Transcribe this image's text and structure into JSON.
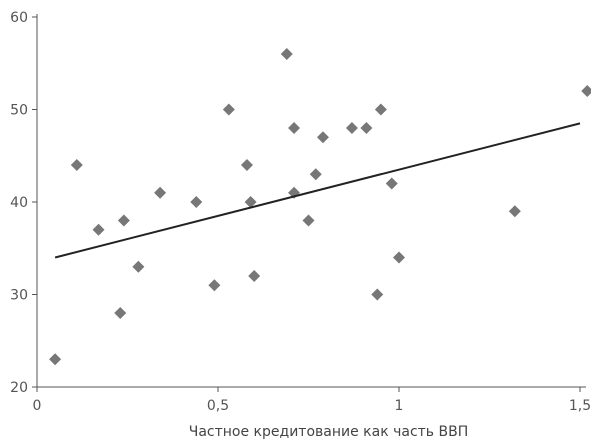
{
  "chart_data": {
    "type": "scatter",
    "title": "",
    "xlabel": "Частное кредитование как часть ВВП",
    "ylabel": "",
    "xlim": [
      0,
      1.5
    ],
    "ylim": [
      20,
      60
    ],
    "grid": false,
    "legend": "none",
    "x_ticks": [
      {
        "value": 0,
        "label": "0"
      },
      {
        "value": 0.5,
        "label": "0,5"
      },
      {
        "value": 1,
        "label": "1"
      },
      {
        "value": 1.5,
        "label": "1,5"
      }
    ],
    "y_ticks": [
      {
        "value": 20,
        "label": "20"
      },
      {
        "value": 30,
        "label": "30"
      },
      {
        "value": 40,
        "label": "40"
      },
      {
        "value": 50,
        "label": "50"
      },
      {
        "value": 60,
        "label": "60"
      }
    ],
    "points": [
      {
        "x": 0.05,
        "y": 23
      },
      {
        "x": 0.11,
        "y": 44
      },
      {
        "x": 0.17,
        "y": 37
      },
      {
        "x": 0.23,
        "y": 28
      },
      {
        "x": 0.24,
        "y": 38
      },
      {
        "x": 0.28,
        "y": 33
      },
      {
        "x": 0.34,
        "y": 41
      },
      {
        "x": 0.44,
        "y": 40
      },
      {
        "x": 0.49,
        "y": 31
      },
      {
        "x": 0.53,
        "y": 50
      },
      {
        "x": 0.58,
        "y": 44
      },
      {
        "x": 0.59,
        "y": 40
      },
      {
        "x": 0.6,
        "y": 32
      },
      {
        "x": 0.69,
        "y": 56
      },
      {
        "x": 0.71,
        "y": 48
      },
      {
        "x": 0.71,
        "y": 41
      },
      {
        "x": 0.75,
        "y": 38
      },
      {
        "x": 0.77,
        "y": 43
      },
      {
        "x": 0.79,
        "y": 47
      },
      {
        "x": 0.87,
        "y": 48
      },
      {
        "x": 0.91,
        "y": 48
      },
      {
        "x": 0.94,
        "y": 30
      },
      {
        "x": 0.95,
        "y": 50
      },
      {
        "x": 0.98,
        "y": 42
      },
      {
        "x": 1.0,
        "y": 34
      },
      {
        "x": 1.32,
        "y": 39
      },
      {
        "x": 1.52,
        "y": 52
      }
    ],
    "trendline": {
      "x": [
        0.05,
        1.5
      ],
      "y": [
        34,
        48.5
      ]
    },
    "colors": {
      "point": "#777777",
      "trendline": "#222222",
      "axis": "#555555"
    }
  }
}
